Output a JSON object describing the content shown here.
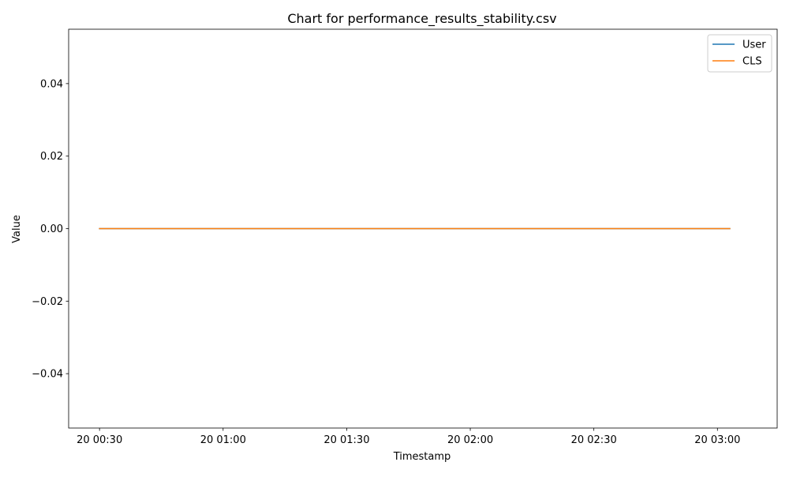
{
  "chart_data": {
    "type": "line",
    "title": "Chart for performance_results_stability.csv",
    "xlabel": "Timestamp",
    "ylabel": "Value",
    "x_tick_labels": [
      "20 00:30",
      "20 01:00",
      "20 01:30",
      "20 02:00",
      "20 02:30",
      "20 03:00"
    ],
    "y_tick_labels": [
      "−0.04",
      "−0.02",
      "0.00",
      "0.02",
      "0.04"
    ],
    "y_ticks": [
      -0.04,
      -0.02,
      0.0,
      0.02,
      0.04
    ],
    "ylim": [
      -0.055,
      0.055
    ],
    "x_axis_unit": "minutes",
    "x_tick_values": [
      30,
      60,
      90,
      120,
      150,
      180
    ],
    "xlim": [
      22.5,
      194.5
    ],
    "legend_position": "upper right",
    "series": [
      {
        "name": "User",
        "color": "#1f77b4",
        "x": [
          30,
          183
        ],
        "y": [
          0.0,
          0.0
        ]
      },
      {
        "name": "CLS",
        "color": "#ff7f0e",
        "x": [
          30,
          183
        ],
        "y": [
          0.0,
          0.0
        ]
      }
    ]
  }
}
